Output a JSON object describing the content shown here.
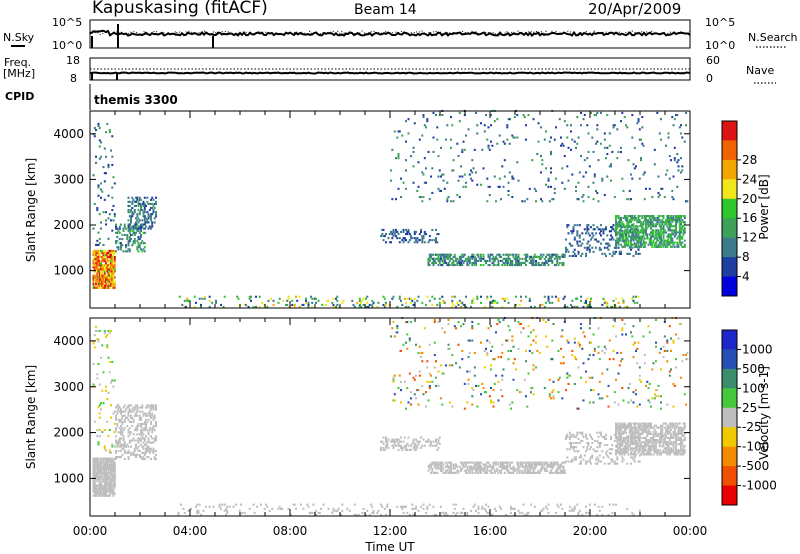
{
  "header": {
    "title": "Kapuskasing (fitACF)",
    "beam": "Beam 14",
    "date": "20/Apr/2009"
  },
  "top_panels": {
    "nsky_label": "N.Sky",
    "nsky_ticks": [
      "10^5",
      "10^0"
    ],
    "nsearch_label": "N.Search",
    "nsearch_ticks": [
      "10^5",
      "10^0"
    ],
    "freq_label_1": "Freq.",
    "freq_label_2": "[MHz]",
    "freq_ticks": [
      "18",
      "8"
    ],
    "nave_label": "Nave",
    "nave_ticks": [
      "60",
      "0"
    ],
    "cpid_label": "CPID",
    "cpid_value": "themis 3300"
  },
  "colors": {
    "power_scale": [
      "#0000dd",
      "#1e3fa0",
      "#3d7a8c",
      "#3fa05a",
      "#2ec82e",
      "#f0e61a",
      "#f5a500",
      "#f06400",
      "#dc1414"
    ],
    "velocity_scale": [
      "#1e28c8",
      "#2850b4",
      "#3c8c6e",
      "#46c83c",
      "#bebebe",
      "#f0c800",
      "#f58c00",
      "#f05000",
      "#e60000"
    ],
    "ground_scatter": "#bebebe"
  },
  "chart_data": [
    {
      "type": "heatmap",
      "quantity": "Power",
      "ylabel": "Slant Range [km]",
      "xlabel": "Time UT",
      "x_ticks": [
        "00:00",
        "04:00",
        "08:00",
        "12:00",
        "16:00",
        "20:00",
        "00:00"
      ],
      "xlim_hours": [
        0,
        24
      ],
      "y_ticks": [
        "1000",
        "2000",
        "3000",
        "4000"
      ],
      "ylim_km": [
        180,
        4500
      ],
      "colorbar_label": "Power [dB]",
      "colorbar_ticks": [
        "4",
        "8",
        "12",
        "16",
        "20",
        "24",
        "28"
      ],
      "colorbar_range": [
        0,
        30
      ],
      "scatter_regions": [
        {
          "hours": [
            0.1,
            1.0
          ],
          "range_km": [
            600,
            1450
          ],
          "value_range": [
            16,
            30
          ],
          "density": 0.85
        },
        {
          "hours": [
            0.1,
            1.0
          ],
          "range_km": [
            1450,
            4300
          ],
          "value_range": [
            4,
            12
          ],
          "density": 0.06
        },
        {
          "hours": [
            1.0,
            2.2
          ],
          "range_km": [
            1400,
            2000
          ],
          "value_range": [
            6,
            14
          ],
          "density": 0.35
        },
        {
          "hours": [
            1.5,
            2.6
          ],
          "range_km": [
            1900,
            2600
          ],
          "value_range": [
            4,
            12
          ],
          "density": 0.35
        },
        {
          "hours": [
            11.6,
            14.0
          ],
          "range_km": [
            1600,
            1900
          ],
          "value_range": [
            4,
            10
          ],
          "density": 0.3
        },
        {
          "hours": [
            13.5,
            19.0
          ],
          "range_km": [
            1100,
            1350
          ],
          "value_range": [
            6,
            14
          ],
          "density": 0.55
        },
        {
          "hours": [
            19.0,
            22.0
          ],
          "range_km": [
            1300,
            2000
          ],
          "value_range": [
            4,
            10
          ],
          "density": 0.2
        },
        {
          "hours": [
            21.0,
            23.8
          ],
          "range_km": [
            1500,
            2200
          ],
          "value_range": [
            8,
            16
          ],
          "density": 0.6
        },
        {
          "hours": [
            3.5,
            22.0
          ],
          "range_km": [
            180,
            450
          ],
          "value_range": [
            4,
            22
          ],
          "density": 0.12
        },
        {
          "hours": [
            12.0,
            23.9
          ],
          "range_km": [
            2500,
            4500
          ],
          "value_range": [
            4,
            12
          ],
          "density": 0.04
        }
      ]
    },
    {
      "type": "heatmap",
      "quantity": "Velocity",
      "ylabel": "Slant Range [km]",
      "xlabel": "Time UT",
      "x_ticks": [
        "00:00",
        "04:00",
        "08:00",
        "12:00",
        "16:00",
        "20:00",
        "00:00"
      ],
      "xlim_hours": [
        0,
        24
      ],
      "y_ticks": [
        "1000",
        "2000",
        "3000",
        "4000"
      ],
      "ylim_km": [
        180,
        4500
      ],
      "colorbar_label": "Velocity [m s-1]",
      "colorbar_ticks": [
        "1000",
        "500",
        "100",
        "25",
        "-25",
        "-100",
        "-500",
        "-1000"
      ],
      "colorbar_range": [
        -1200,
        1200
      ],
      "scatter_regions": [
        {
          "hours": [
            0.1,
            1.0
          ],
          "range_km": [
            600,
            1450
          ],
          "value_range": [
            -20,
            20
          ],
          "density": 0.85
        },
        {
          "hours": [
            0.1,
            1.0
          ],
          "range_km": [
            1450,
            4300
          ],
          "value_range": [
            -300,
            300
          ],
          "density": 0.06
        },
        {
          "hours": [
            1.0,
            2.6
          ],
          "range_km": [
            1400,
            2600
          ],
          "value_range": [
            -20,
            20
          ],
          "density": 0.35
        },
        {
          "hours": [
            11.6,
            14.0
          ],
          "range_km": [
            1600,
            1900
          ],
          "value_range": [
            -20,
            20
          ],
          "density": 0.3
        },
        {
          "hours": [
            13.5,
            19.0
          ],
          "range_km": [
            1100,
            1350
          ],
          "value_range": [
            -20,
            20
          ],
          "density": 0.55
        },
        {
          "hours": [
            19.0,
            22.0
          ],
          "range_km": [
            1300,
            2000
          ],
          "value_range": [
            -20,
            20
          ],
          "density": 0.2
        },
        {
          "hours": [
            21.0,
            23.8
          ],
          "range_km": [
            1500,
            2200
          ],
          "value_range": [
            -20,
            20
          ],
          "density": 0.6
        },
        {
          "hours": [
            3.5,
            22.0
          ],
          "range_km": [
            180,
            450
          ],
          "value_range": [
            -20,
            20
          ],
          "density": 0.1
        },
        {
          "hours": [
            12.0,
            23.9
          ],
          "range_km": [
            2500,
            4500
          ],
          "value_range": [
            -900,
            900
          ],
          "density": 0.04
        }
      ]
    }
  ]
}
